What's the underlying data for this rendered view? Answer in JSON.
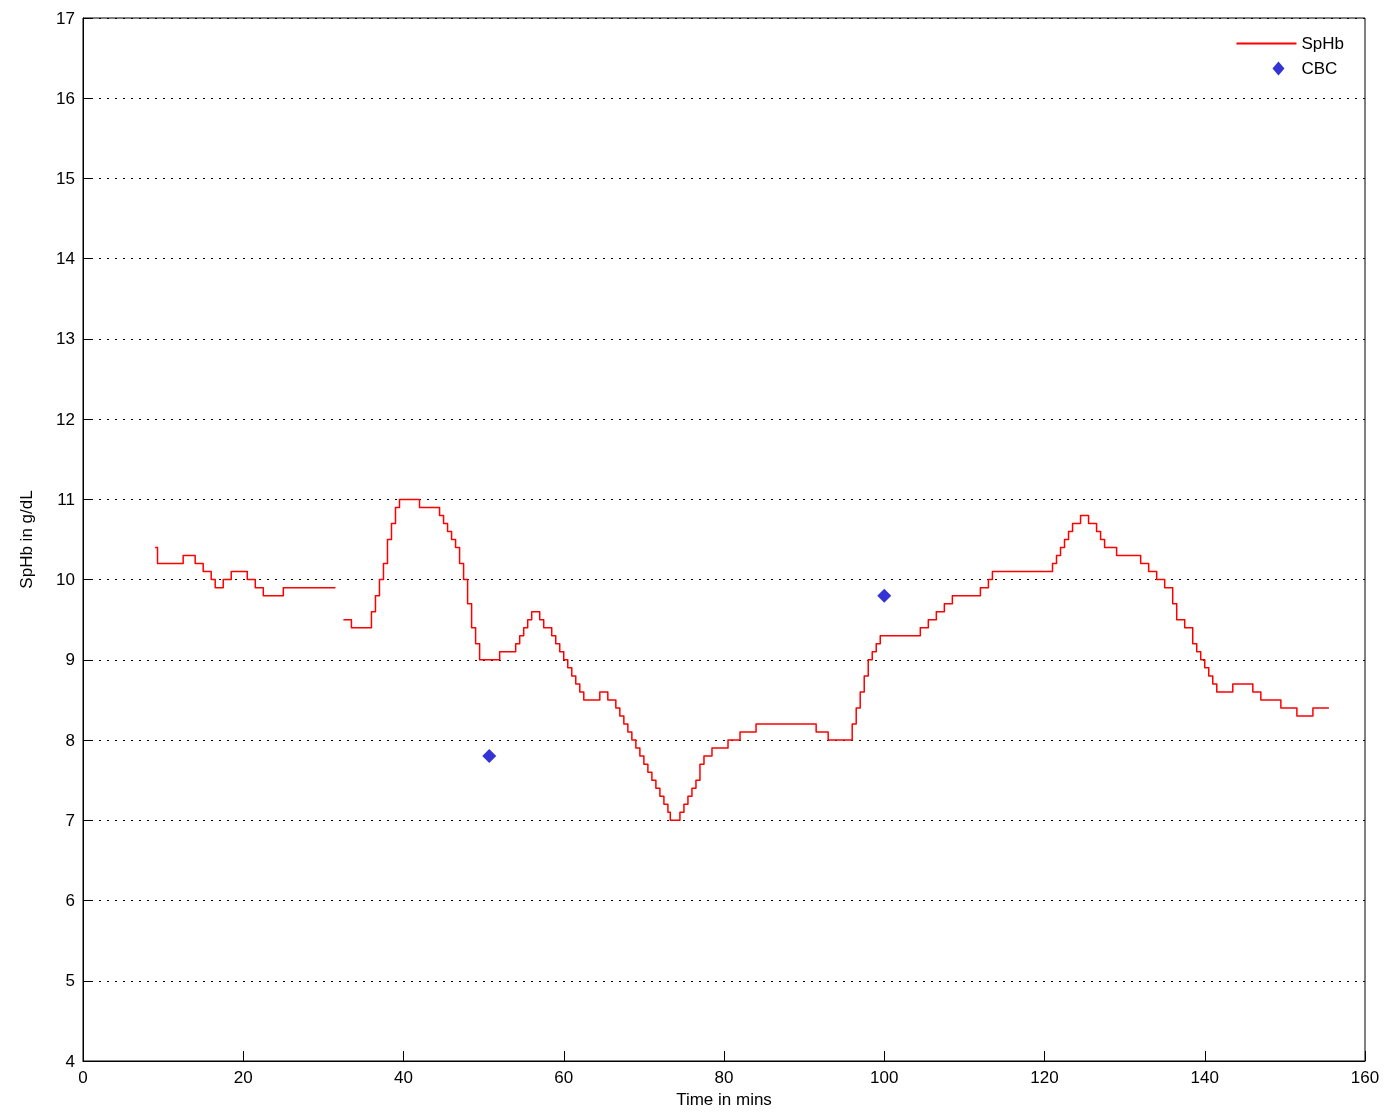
{
  "chart_data": {
    "type": "step",
    "xlabel": "Time in mins",
    "ylabel": "SpHb in g/dL",
    "xlim": [
      0,
      160
    ],
    "xticks": [
      0,
      20,
      40,
      60,
      80,
      100,
      120,
      140,
      160
    ],
    "ylim": [
      4,
      17
    ],
    "yticks": [
      4,
      5,
      6,
      7,
      8,
      9,
      10,
      11,
      12,
      13,
      14,
      15,
      16,
      17
    ],
    "grid": "y",
    "legend": "top right",
    "series": [
      {
        "name": "SpHb",
        "color": "#ff0000",
        "marker": "none",
        "line_style": "solid",
        "x": [
          9,
          9.3,
          12.5,
          14,
          15,
          16,
          16.5,
          17.5,
          18.5,
          20.5,
          21.5,
          22.5,
          25,
          27.5,
          30.5,
          31.5,
          32.5,
          33.5,
          36,
          36.5,
          37,
          37.5,
          38,
          38.5,
          39,
          39.5,
          42,
          44.5,
          45,
          45.5,
          46,
          46.5,
          47,
          47.5,
          48,
          48.5,
          49,
          49.5,
          50.5,
          52,
          54,
          54.5,
          55,
          55.5,
          56,
          57,
          57.5,
          58.5,
          59,
          59.5,
          60,
          60.5,
          61,
          61.5,
          62,
          62.5,
          64.5,
          65.5,
          66.5,
          67,
          67.5,
          68,
          68.5,
          69,
          69.5,
          70,
          70.5,
          71,
          71.5,
          72,
          72.5,
          73,
          73.3,
          74.5,
          75,
          75.5,
          76,
          76.5,
          77,
          77.5,
          78.5,
          80.5,
          82,
          84,
          91.5,
          93,
          96,
          96.5,
          97,
          97.5,
          98,
          98.5,
          99,
          99.5,
          104.5,
          105.5,
          106.5,
          107.5,
          108.5,
          112,
          113,
          113.5,
          121,
          121.5,
          122,
          122.5,
          123,
          123.5,
          124.5,
          125.5,
          126.5,
          127,
          127.5,
          129,
          132,
          133,
          134,
          135,
          136,
          136.5,
          137.5,
          138.5,
          139,
          139.5,
          140,
          140.5,
          141,
          141.5,
          143.5,
          146,
          147,
          149.5,
          151.5,
          153.5,
          155.5
        ],
        "values": [
          10.4,
          10.2,
          10.3,
          10.2,
          10.1,
          10.0,
          9.9,
          10.0,
          10.1,
          10.0,
          9.9,
          9.8,
          9.9,
          9.9,
          9.9,
          null,
          9.5,
          9.4,
          9.6,
          9.8,
          10.0,
          10.2,
          10.5,
          10.7,
          10.9,
          11.0,
          10.9,
          10.8,
          10.7,
          10.6,
          10.5,
          10.4,
          10.2,
          10.0,
          9.7,
          9.4,
          9.2,
          9.0,
          9.0,
          9.1,
          9.2,
          9.3,
          9.4,
          9.5,
          9.6,
          9.5,
          9.4,
          9.3,
          9.2,
          9.1,
          9.0,
          8.9,
          8.8,
          8.7,
          8.6,
          8.5,
          8.6,
          8.5,
          8.4,
          8.3,
          8.2,
          8.1,
          8.0,
          7.9,
          7.8,
          7.7,
          7.6,
          7.5,
          7.4,
          7.3,
          7.2,
          7.1,
          7.0,
          7.1,
          7.2,
          7.3,
          7.4,
          7.5,
          7.7,
          7.8,
          7.9,
          8.0,
          8.1,
          8.2,
          8.1,
          8.0,
          8.2,
          8.4,
          8.6,
          8.8,
          9.0,
          9.1,
          9.2,
          9.3,
          9.4,
          9.5,
          9.6,
          9.7,
          9.8,
          9.9,
          10.0,
          10.1,
          10.2,
          10.3,
          10.4,
          10.5,
          10.6,
          10.7,
          10.8,
          10.7,
          10.6,
          10.5,
          10.4,
          10.3,
          10.2,
          10.1,
          10.0,
          9.9,
          9.7,
          9.5,
          9.4,
          9.2,
          9.1,
          9.0,
          8.9,
          8.8,
          8.7,
          8.6,
          8.7,
          8.6,
          8.5,
          8.4,
          8.3,
          8.4,
          8.4
        ]
      },
      {
        "name": "CBC",
        "type": "scatter",
        "color": "#0000cc",
        "marker": "diamond",
        "x": [
          50.7,
          100
        ],
        "values": [
          7.8,
          9.8
        ]
      }
    ]
  }
}
